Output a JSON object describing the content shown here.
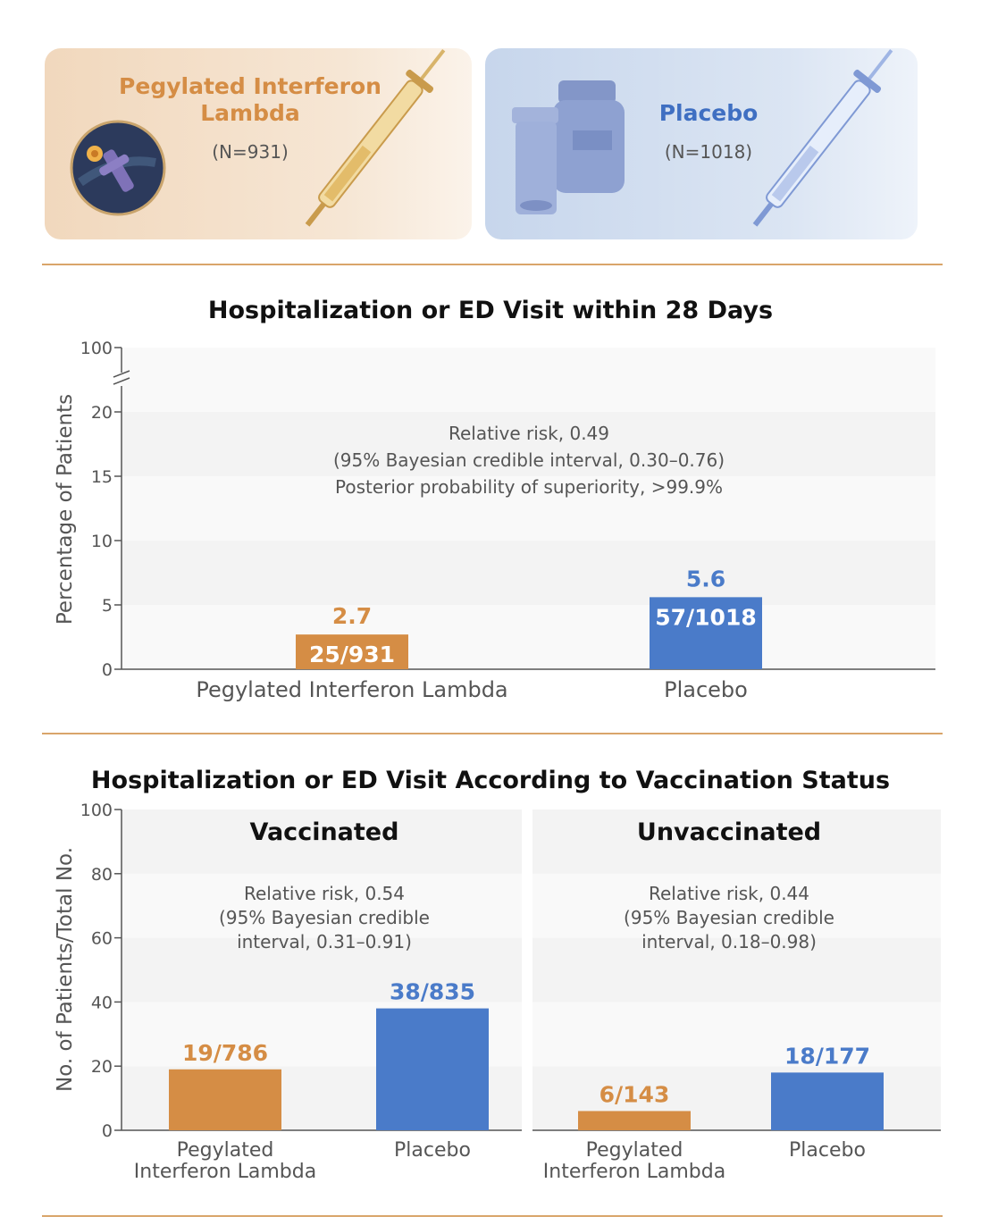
{
  "header": {
    "left_arm": {
      "title_line1": "Pegylated Interferon",
      "title_line2": "Lambda",
      "n": "(N=931)"
    },
    "right_arm": {
      "title": "Placebo",
      "n": "(N=1018)"
    }
  },
  "colors": {
    "interferon": "#d58d45",
    "placebo": "#4a7bc9",
    "axis": "#555555",
    "divider": "#d9a56a"
  },
  "icons": [
    "virus-lens-icon",
    "syringe-gold-icon",
    "pill-bottles-icon",
    "syringe-blue-icon"
  ],
  "chart_data": [
    {
      "type": "bar",
      "title": "Hospitalization or ED Visit within 28 Days",
      "ylabel": "Percentage of Patients",
      "yticks": [
        0,
        5,
        10,
        15,
        20,
        100
      ],
      "axis_break": [
        20,
        100
      ],
      "ylim": [
        0,
        100
      ],
      "categories": [
        "Pegylated Interferon Lambda",
        "Placebo"
      ],
      "values": [
        2.7,
        5.6
      ],
      "value_labels": [
        "2.7",
        "5.6"
      ],
      "count_labels": [
        "25/931",
        "57/1018"
      ],
      "annotation": [
        "Relative risk, 0.49",
        "(95% Bayesian credible interval, 0.30–0.76)",
        "Posterior probability of superiority, >99.9%"
      ]
    },
    {
      "type": "bar",
      "title": "Hospitalization or ED Visit According to Vaccination Status",
      "ylabel": "No. of Patients/Total No.",
      "yticks": [
        0,
        20,
        40,
        60,
        80,
        100
      ],
      "ylim": [
        0,
        100
      ],
      "panels": [
        {
          "name": "Vaccinated",
          "categories": [
            [
              "Pegylated",
              "Interferon Lambda"
            ],
            [
              "Placebo"
            ]
          ],
          "values": [
            19,
            38
          ],
          "labels": [
            "19/786",
            "38/835"
          ],
          "annotation": [
            "Relative risk, 0.54",
            "(95% Bayesian credible",
            "interval, 0.31–0.91)"
          ]
        },
        {
          "name": "Unvaccinated",
          "categories": [
            [
              "Pegylated",
              "Interferon Lambda"
            ],
            [
              "Placebo"
            ]
          ],
          "values": [
            6,
            18
          ],
          "labels": [
            "6/143",
            "18/177"
          ],
          "annotation": [
            "Relative risk, 0.44",
            "(95% Bayesian credible",
            "interval, 0.18–0.98)"
          ]
        }
      ]
    }
  ]
}
